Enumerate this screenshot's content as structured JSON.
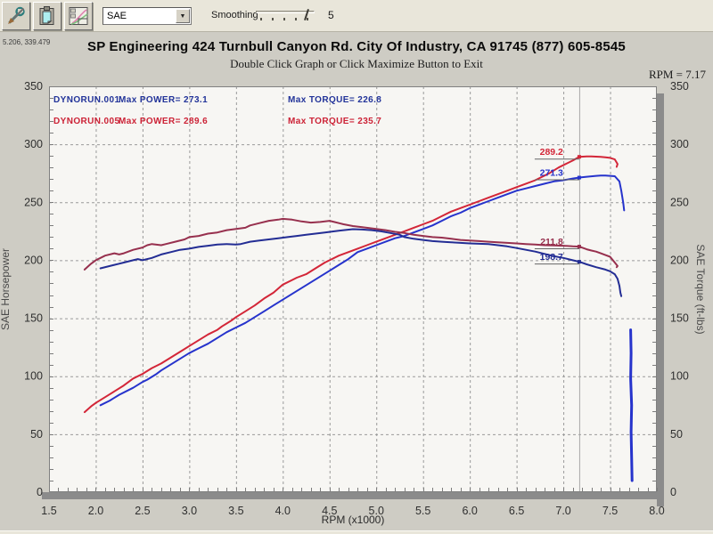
{
  "toolbar": {
    "buttons": [
      {
        "name": "tools"
      },
      {
        "name": "clipboard"
      },
      {
        "name": "graph"
      }
    ],
    "correction_select": {
      "value": "SAE"
    },
    "smoothing": {
      "label": "Smoothing",
      "value": "5"
    }
  },
  "header": {
    "mouse_coords": "5.206, 339.479",
    "title": "SP Engineering 424 Turnbull Canyon Rd. City Of Industry, CA 91745 (877) 605-8545",
    "subtitle": "Double Click Graph or Click Maximize Button to Exit",
    "rpm_readout": "RPM = 7.17"
  },
  "colors": {
    "power_001": "#2633cc",
    "torque_001": "#232d94",
    "power_005": "#d32638",
    "torque_005": "#97304e",
    "legend_001": "#223399",
    "legend_005": "#cc2236",
    "grid": "#9a9a9a",
    "cursor": "#a8a8a8",
    "plot_bg": "#f7f6f3",
    "shadow": "#8b8b8b"
  },
  "chart_data": {
    "type": "line",
    "xlabel": "RPM (x1000)",
    "ylabel_left": "SAE Horsepower",
    "ylabel_right": "SAE Torque (ft-lbs)",
    "xlim": [
      1.5,
      8.0
    ],
    "ylim": [
      0,
      350
    ],
    "xticks": [
      "1.5",
      "2.0",
      "2.5",
      "3.0",
      "3.5",
      "4.0",
      "4.5",
      "5.0",
      "5.5",
      "6.0",
      "6.5",
      "7.0",
      "7.5",
      "8.0"
    ],
    "yticks": [
      "0",
      "50",
      "100",
      "150",
      "200",
      "250",
      "300",
      "350"
    ],
    "grid": "dashed",
    "cursor_rpm": 7.17,
    "cursor_readouts": [
      {
        "text": "289.2",
        "value": 289.2,
        "color": "#d32638"
      },
      {
        "text": "271.3",
        "value": 271.3,
        "color": "#2633cc"
      },
      {
        "text": "211.8",
        "value": 211.8,
        "color": "#97304e"
      },
      {
        "text": "198.7",
        "value": 198.7,
        "color": "#232d94"
      }
    ],
    "legend": {
      "rows": [
        {
          "run": "DYNORUN.001",
          "power": "Max POWER= 273.1",
          "torque": "Max TORQUE= 226.8",
          "color": "#223399"
        },
        {
          "run": "DYNORUN.005",
          "power": "Max POWER= 289.6",
          "torque": "Max TORQUE= 235.7",
          "color": "#cc2236"
        }
      ]
    },
    "series": [
      {
        "name": "power-005",
        "label": "DYNORUN.005 SAE Horsepower",
        "color": "#d32638",
        "width": 2,
        "points": [
          [
            1.88,
            69
          ],
          [
            1.95,
            74
          ],
          [
            2.0,
            77
          ],
          [
            2.1,
            82
          ],
          [
            2.2,
            87
          ],
          [
            2.3,
            92
          ],
          [
            2.4,
            98
          ],
          [
            2.5,
            102
          ],
          [
            2.6,
            107
          ],
          [
            2.7,
            111
          ],
          [
            2.8,
            116
          ],
          [
            2.9,
            121
          ],
          [
            3.0,
            126
          ],
          [
            3.1,
            131
          ],
          [
            3.2,
            136
          ],
          [
            3.3,
            140
          ],
          [
            3.35,
            143
          ],
          [
            3.45,
            148
          ],
          [
            3.5,
            151
          ],
          [
            3.6,
            156
          ],
          [
            3.7,
            161
          ],
          [
            3.8,
            167
          ],
          [
            3.9,
            172
          ],
          [
            4.0,
            179
          ],
          [
            4.1,
            183
          ],
          [
            4.15,
            185
          ],
          [
            4.25,
            188
          ],
          [
            4.35,
            193
          ],
          [
            4.45,
            198
          ],
          [
            4.5,
            200
          ],
          [
            4.6,
            204
          ],
          [
            4.7,
            207
          ],
          [
            4.8,
            210
          ],
          [
            4.9,
            213
          ],
          [
            5.0,
            216
          ],
          [
            5.1,
            219
          ],
          [
            5.2,
            222
          ],
          [
            5.3,
            225
          ],
          [
            5.4,
            228
          ],
          [
            5.5,
            231
          ],
          [
            5.6,
            234
          ],
          [
            5.7,
            238
          ],
          [
            5.8,
            242
          ],
          [
            5.9,
            245
          ],
          [
            6.0,
            248
          ],
          [
            6.1,
            251
          ],
          [
            6.2,
            254
          ],
          [
            6.3,
            257
          ],
          [
            6.4,
            260
          ],
          [
            6.5,
            263
          ],
          [
            6.6,
            266
          ],
          [
            6.7,
            269
          ],
          [
            6.75,
            271
          ],
          [
            6.85,
            275
          ],
          [
            6.95,
            280
          ],
          [
            7.05,
            284
          ],
          [
            7.1,
            286
          ],
          [
            7.17,
            289.2
          ],
          [
            7.25,
            289.5
          ],
          [
            7.3,
            289.6
          ],
          [
            7.35,
            289.4
          ],
          [
            7.4,
            289.2
          ],
          [
            7.45,
            288.8
          ],
          [
            7.5,
            288.3
          ],
          [
            7.55,
            287
          ],
          [
            7.58,
            283
          ],
          [
            7.57,
            280.5
          ]
        ]
      },
      {
        "name": "power-001",
        "label": "DYNORUN.001 SAE Horsepower",
        "color": "#2633cc",
        "width": 2,
        "points": [
          [
            2.05,
            75
          ],
          [
            2.15,
            79
          ],
          [
            2.25,
            84
          ],
          [
            2.35,
            88
          ],
          [
            2.4,
            90
          ],
          [
            2.5,
            95
          ],
          [
            2.55,
            97
          ],
          [
            2.65,
            102
          ],
          [
            2.7,
            105
          ],
          [
            2.8,
            110
          ],
          [
            2.9,
            115
          ],
          [
            3.0,
            120
          ],
          [
            3.1,
            124
          ],
          [
            3.2,
            128
          ],
          [
            3.3,
            133
          ],
          [
            3.4,
            138
          ],
          [
            3.5,
            142
          ],
          [
            3.6,
            146
          ],
          [
            3.7,
            151
          ],
          [
            3.8,
            156
          ],
          [
            3.9,
            161
          ],
          [
            4.0,
            166
          ],
          [
            4.1,
            171
          ],
          [
            4.2,
            176
          ],
          [
            4.3,
            181
          ],
          [
            4.4,
            186
          ],
          [
            4.5,
            191
          ],
          [
            4.6,
            196
          ],
          [
            4.7,
            201
          ],
          [
            4.8,
            207
          ],
          [
            4.9,
            210
          ],
          [
            5.0,
            213
          ],
          [
            5.1,
            216
          ],
          [
            5.2,
            219
          ],
          [
            5.3,
            221
          ],
          [
            5.4,
            224
          ],
          [
            5.5,
            227
          ],
          [
            5.6,
            230
          ],
          [
            5.7,
            234
          ],
          [
            5.8,
            238
          ],
          [
            5.9,
            241
          ],
          [
            6.0,
            245
          ],
          [
            6.1,
            248
          ],
          [
            6.2,
            251
          ],
          [
            6.3,
            254
          ],
          [
            6.4,
            257
          ],
          [
            6.5,
            260
          ],
          [
            6.6,
            262
          ],
          [
            6.7,
            264
          ],
          [
            6.8,
            266
          ],
          [
            6.9,
            268
          ],
          [
            7.0,
            269
          ],
          [
            7.1,
            270.5
          ],
          [
            7.17,
            271.3
          ],
          [
            7.25,
            272
          ],
          [
            7.35,
            272.8
          ],
          [
            7.4,
            273.1
          ],
          [
            7.45,
            273
          ],
          [
            7.5,
            272.8
          ],
          [
            7.55,
            272.5
          ],
          [
            7.6,
            268
          ],
          [
            7.62,
            260
          ],
          [
            7.64,
            250
          ],
          [
            7.65,
            243
          ]
        ]
      },
      {
        "name": "torque-005",
        "label": "DYNORUN.005 SAE Torque",
        "color": "#97304e",
        "width": 2,
        "points": [
          [
            1.88,
            192
          ],
          [
            1.95,
            197
          ],
          [
            2.0,
            200
          ],
          [
            2.05,
            202
          ],
          [
            2.1,
            204
          ],
          [
            2.2,
            206
          ],
          [
            2.25,
            205
          ],
          [
            2.3,
            206
          ],
          [
            2.4,
            209
          ],
          [
            2.5,
            211
          ],
          [
            2.55,
            213
          ],
          [
            2.6,
            214
          ],
          [
            2.7,
            213
          ],
          [
            2.75,
            214
          ],
          [
            2.85,
            216
          ],
          [
            2.95,
            218
          ],
          [
            3.0,
            220
          ],
          [
            3.1,
            221
          ],
          [
            3.2,
            223
          ],
          [
            3.3,
            224
          ],
          [
            3.4,
            226
          ],
          [
            3.5,
            227
          ],
          [
            3.6,
            228
          ],
          [
            3.65,
            230
          ],
          [
            3.75,
            232
          ],
          [
            3.85,
            234
          ],
          [
            3.95,
            235
          ],
          [
            4.0,
            235.7
          ],
          [
            4.1,
            235
          ],
          [
            4.2,
            233.5
          ],
          [
            4.3,
            232.5
          ],
          [
            4.4,
            233
          ],
          [
            4.5,
            234
          ],
          [
            4.55,
            233
          ],
          [
            4.65,
            231
          ],
          [
            4.75,
            229.5
          ],
          [
            4.85,
            228.5
          ],
          [
            5.0,
            227
          ],
          [
            5.1,
            226
          ],
          [
            5.2,
            224.5
          ],
          [
            5.3,
            223.5
          ],
          [
            5.4,
            222
          ],
          [
            5.5,
            221
          ],
          [
            5.6,
            220
          ],
          [
            5.7,
            219.5
          ],
          [
            5.8,
            218.5
          ],
          [
            5.9,
            217.5
          ],
          [
            6.0,
            217
          ],
          [
            6.1,
            216.5
          ],
          [
            6.2,
            216
          ],
          [
            6.3,
            215.5
          ],
          [
            6.4,
            215
          ],
          [
            6.5,
            214.5
          ],
          [
            6.6,
            214
          ],
          [
            6.7,
            213.5
          ],
          [
            6.8,
            213
          ],
          [
            6.9,
            212.8
          ],
          [
            7.0,
            212.5
          ],
          [
            7.1,
            212
          ],
          [
            7.17,
            211.8
          ],
          [
            7.25,
            209.5
          ],
          [
            7.3,
            208.4
          ],
          [
            7.35,
            207.5
          ],
          [
            7.4,
            206
          ],
          [
            7.45,
            204.5
          ],
          [
            7.5,
            203
          ],
          [
            7.53,
            200
          ],
          [
            7.56,
            197
          ],
          [
            7.58,
            195
          ],
          [
            7.57,
            194
          ]
        ]
      },
      {
        "name": "torque-001",
        "label": "DYNORUN.001 SAE Torque",
        "color": "#232d94",
        "width": 2,
        "points": [
          [
            2.05,
            193
          ],
          [
            2.15,
            195
          ],
          [
            2.25,
            197
          ],
          [
            2.3,
            198
          ],
          [
            2.4,
            200
          ],
          [
            2.45,
            201
          ],
          [
            2.5,
            200
          ],
          [
            2.6,
            202
          ],
          [
            2.7,
            205
          ],
          [
            2.8,
            207
          ],
          [
            2.9,
            209
          ],
          [
            3.0,
            210
          ],
          [
            3.1,
            211.5
          ],
          [
            3.2,
            212.5
          ],
          [
            3.3,
            213.5
          ],
          [
            3.4,
            214
          ],
          [
            3.5,
            213.5
          ],
          [
            3.55,
            214
          ],
          [
            3.65,
            216
          ],
          [
            3.75,
            217
          ],
          [
            3.85,
            218
          ],
          [
            3.95,
            219
          ],
          [
            4.05,
            220
          ],
          [
            4.15,
            221
          ],
          [
            4.25,
            222
          ],
          [
            4.35,
            223
          ],
          [
            4.45,
            224
          ],
          [
            4.55,
            225
          ],
          [
            4.65,
            226
          ],
          [
            4.75,
            226.8
          ],
          [
            4.85,
            226.5
          ],
          [
            4.95,
            226
          ],
          [
            5.05,
            225
          ],
          [
            5.15,
            223.5
          ],
          [
            5.25,
            222
          ],
          [
            5.3,
            220
          ],
          [
            5.4,
            218.5
          ],
          [
            5.5,
            217.5
          ],
          [
            5.6,
            216.5
          ],
          [
            5.7,
            216
          ],
          [
            5.8,
            215.5
          ],
          [
            5.9,
            215
          ],
          [
            6.0,
            214.5
          ],
          [
            6.1,
            214.2
          ],
          [
            6.2,
            214
          ],
          [
            6.3,
            213
          ],
          [
            6.4,
            212
          ],
          [
            6.5,
            210.5
          ],
          [
            6.6,
            209
          ],
          [
            6.7,
            207.5
          ],
          [
            6.8,
            205.5
          ],
          [
            6.9,
            203.5
          ],
          [
            7.0,
            202
          ],
          [
            7.1,
            200
          ],
          [
            7.17,
            198.7
          ],
          [
            7.25,
            196.5
          ],
          [
            7.35,
            194
          ],
          [
            7.45,
            192
          ],
          [
            7.5,
            190.5
          ],
          [
            7.55,
            188
          ],
          [
            7.58,
            184
          ],
          [
            7.6,
            178
          ],
          [
            7.61,
            172
          ],
          [
            7.62,
            169
          ]
        ]
      },
      {
        "name": "trace-001-tail",
        "label": "DYNORUN.001 end-of-run tail",
        "color": "#2633cc",
        "width": 3,
        "points": [
          [
            7.72,
            140
          ],
          [
            7.725,
            120
          ],
          [
            7.72,
            98
          ],
          [
            7.73,
            75
          ],
          [
            7.725,
            52
          ],
          [
            7.73,
            30
          ],
          [
            7.735,
            10
          ]
        ]
      }
    ]
  }
}
